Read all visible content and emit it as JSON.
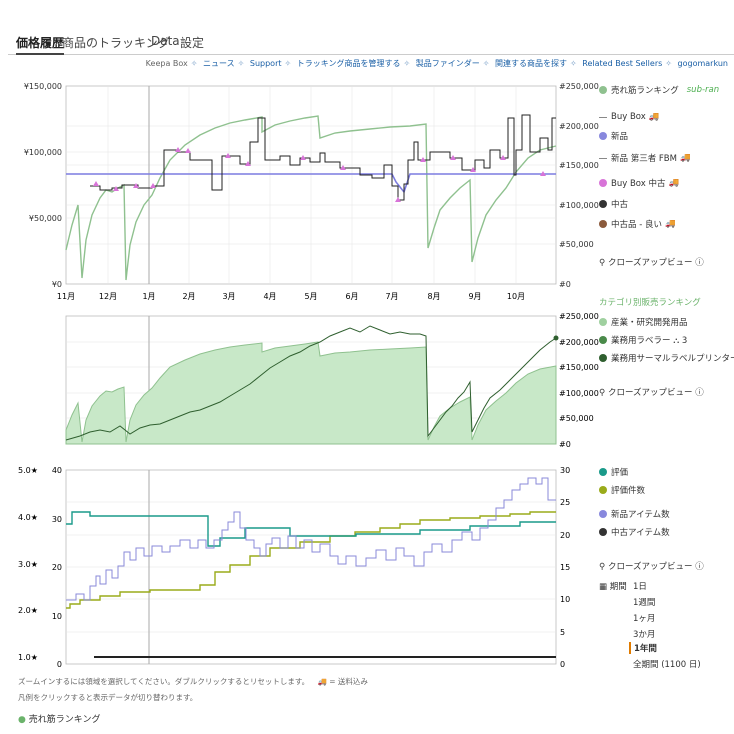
{
  "tabs": [
    "価格履歴",
    "商品のトラッキング",
    "Data",
    "設定"
  ],
  "nav": {
    "brand": "Keepa Box",
    "links": [
      "ニュース",
      "Support",
      "トラッキング商品を管理する",
      "製品ファインダー",
      "関連する商品を探す",
      "Related Best Sellers",
      "gogomarkun"
    ]
  },
  "price_chart": {
    "left_ticks": [
      "¥150,000",
      "¥100,000",
      "¥50,000",
      "¥0"
    ],
    "right_ticks": [
      "#250,000",
      "#200,000",
      "#150,000",
      "#100,000",
      "#50,000",
      "#0"
    ],
    "months": [
      "11月",
      "12月",
      "1月",
      "2月",
      "3月",
      "4月",
      "5月",
      "6月",
      "7月",
      "8月",
      "9月",
      "10月"
    ]
  },
  "legend1": {
    "items": [
      {
        "label": "売れ筋ランキング",
        "color": "#8fc18f",
        "extra": "sub-ran"
      },
      {
        "label": "Buy Box",
        "color": "#888888",
        "style": "dash"
      },
      {
        "label": "新品",
        "color": "#8888dd"
      },
      {
        "label": "新品 第三者 FBM",
        "color": "#888888",
        "style": "dash"
      },
      {
        "label": "Buy Box 中古",
        "color": "#d874d8"
      },
      {
        "label": "中古",
        "color": "#333333"
      },
      {
        "label": "中古品 - 良い",
        "color": "#8b5a3c"
      }
    ],
    "closeup": "クローズアップビュー ⓘ"
  },
  "rank_chart": {
    "right_ticks": [
      "#250,000",
      "#200,000",
      "#150,000",
      "#100,000",
      "#50,000",
      "#0"
    ]
  },
  "legend2": {
    "heading": "カテゴリ別販売ランキング",
    "items": [
      {
        "label": "産業・研究開発用品",
        "color": "#9fd09f"
      },
      {
        "label": "業務用ラベラー ⛬ 3",
        "color": "#4a8a4a"
      },
      {
        "label": "業務用サーマルラベルプリンター",
        "color": "#2f5f2f"
      }
    ],
    "closeup": "クローズアップビュー ⓘ"
  },
  "rating_chart": {
    "left_stars": [
      "5.0★",
      "4.0★",
      "3.0★",
      "2.0★",
      "1.0★"
    ],
    "left_counts": [
      "40",
      "30",
      "20",
      "10",
      "0"
    ],
    "right_ticks": [
      "30",
      "25",
      "20",
      "15",
      "10",
      "5",
      "0"
    ]
  },
  "legend3": {
    "items": [
      {
        "label": "評価",
        "color": "#1a9a8a"
      },
      {
        "label": "評価件数",
        "color": "#9aab1a"
      },
      {
        "label": "新品アイテム数",
        "color": "#8888dd"
      },
      {
        "label": "中古アイテム数",
        "color": "#333333"
      }
    ],
    "closeup": "クローズアップビュー ⓘ"
  },
  "range": {
    "label": "期間",
    "options": [
      "1日",
      "1週間",
      "1ヶ月",
      "3か月",
      "1年間",
      "全期間 (1100 日)"
    ],
    "selected": 4
  },
  "footnotes": {
    "line1": "ズームインするには領域を選択してください。ダブルクリックするとリセットします。",
    "shipping": "= 送料込み",
    "line2": "凡例をクリックすると表示データが切り替わります。"
  },
  "bottom_legend": "売れ筋ランキング"
}
